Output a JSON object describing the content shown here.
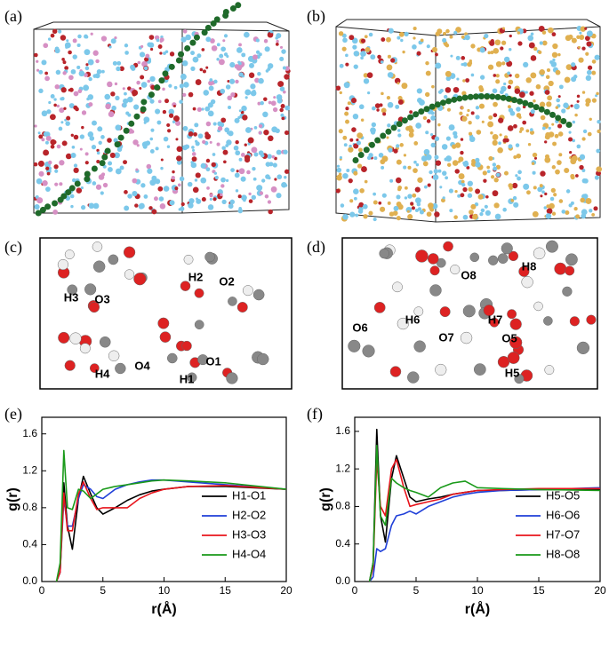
{
  "panel_labels": [
    "(a)",
    "(b)",
    "(c)",
    "(d)",
    "(e)",
    "(f)"
  ],
  "molecule_labels": {
    "c": [
      "H3",
      "O3",
      "H2",
      "O2",
      "H4",
      "O4",
      "H1",
      "O1"
    ],
    "d": [
      "O6",
      "H6",
      "O8",
      "H8",
      "H7",
      "O7",
      "O5",
      "H5"
    ]
  },
  "chart_data": [
    {
      "type": "line",
      "x_label": "r(Å)",
      "y_label": "g(r)",
      "legend": "lower right",
      "grid": false,
      "xlim": [
        0,
        20
      ],
      "xticks": [
        0,
        5,
        10,
        15,
        20
      ],
      "ylim": [
        0,
        1.78
      ],
      "yticks": [
        {
          "value": 0,
          "label": "0.0"
        },
        0.4,
        0.8,
        1.2,
        1.6
      ],
      "x": [
        1.2,
        1.5,
        1.8,
        2.1,
        2.5,
        3,
        3.4,
        4,
        4.5,
        5,
        6,
        7,
        8,
        9,
        10,
        12,
        15,
        20
      ],
      "series": [
        {
          "name": "H1-O1",
          "color": "#000000",
          "values": [
            0,
            0.1,
            1.07,
            0.6,
            0.35,
            0.9,
            1.14,
            0.95,
            0.8,
            0.73,
            0.8,
            0.88,
            0.94,
            0.98,
            1.0,
            1.03,
            1.03,
            1.0
          ]
        },
        {
          "name": "H2-O2",
          "color": "#1f3fd8",
          "values": [
            0,
            0.1,
            0.9,
            0.6,
            0.6,
            0.9,
            1.05,
            1.0,
            0.92,
            0.9,
            1.0,
            1.05,
            1.08,
            1.1,
            1.1,
            1.08,
            1.05,
            1.0
          ]
        },
        {
          "name": "H3-O3",
          "color": "#e8141c",
          "values": [
            0,
            0.1,
            0.96,
            0.55,
            0.55,
            0.95,
            1.08,
            0.9,
            0.78,
            0.8,
            0.8,
            0.8,
            0.9,
            0.96,
            1.0,
            1.03,
            1.04,
            1.0
          ]
        },
        {
          "name": "H4-O4",
          "color": "#1a9a1a",
          "values": [
            0,
            0.2,
            1.42,
            0.8,
            0.78,
            1.0,
            0.98,
            0.9,
            0.95,
            1.0,
            1.03,
            1.05,
            1.07,
            1.09,
            1.1,
            1.09,
            1.07,
            1.0
          ]
        }
      ]
    },
    {
      "type": "line",
      "x_label": "r(Å)",
      "y_label": "g(r)",
      "legend": "lower right",
      "grid": false,
      "xlim": [
        0,
        20
      ],
      "xticks": [
        0,
        5,
        10,
        15,
        20
      ],
      "ylim": [
        0,
        1.75
      ],
      "yticks": [
        {
          "value": 0,
          "label": "0.0"
        },
        0.4,
        0.8,
        1.2,
        1.6
      ],
      "x": [
        1.2,
        1.5,
        1.8,
        2.1,
        2.5,
        3,
        3.4,
        4,
        4.5,
        5,
        6,
        7,
        8,
        9,
        10,
        12,
        15,
        20
      ],
      "series": [
        {
          "name": "H5-O5",
          "color": "#000000",
          "values": [
            0,
            0.2,
            1.62,
            0.7,
            0.42,
            1.1,
            1.34,
            1.1,
            0.9,
            0.85,
            0.88,
            0.9,
            0.93,
            0.95,
            0.97,
            0.97,
            0.98,
            0.98
          ]
        },
        {
          "name": "H6-O6",
          "color": "#1f3fd8",
          "values": [
            0,
            0.05,
            0.35,
            0.32,
            0.35,
            0.6,
            0.7,
            0.72,
            0.75,
            0.72,
            0.8,
            0.85,
            0.9,
            0.93,
            0.95,
            0.97,
            0.98,
            1.0
          ]
        },
        {
          "name": "H7-O7",
          "color": "#e8141c",
          "values": [
            0,
            0.15,
            1.3,
            0.8,
            0.7,
            1.2,
            1.3,
            1.0,
            0.8,
            0.82,
            0.85,
            0.88,
            0.93,
            0.95,
            0.97,
            0.98,
            0.99,
            0.99
          ]
        },
        {
          "name": "H8-O8",
          "color": "#1a9a1a",
          "values": [
            0,
            0.2,
            1.45,
            0.7,
            0.6,
            1.1,
            1.05,
            1.0,
            0.97,
            0.95,
            0.9,
            1.0,
            1.05,
            1.07,
            1.0,
            0.99,
            0.98,
            0.97
          ]
        }
      ]
    }
  ]
}
